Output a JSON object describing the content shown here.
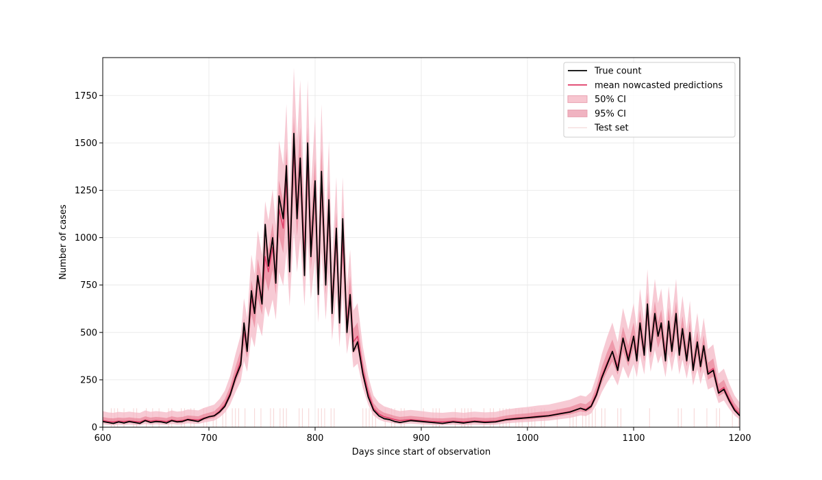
{
  "chart_data": {
    "type": "line",
    "title": "",
    "xlabel": "Days since start of observation",
    "ylabel": "Number of cases",
    "xlim": [
      600,
      1200
    ],
    "ylim": [
      0,
      1950
    ],
    "x_ticks": [
      600,
      700,
      800,
      900,
      1000,
      1100,
      1200
    ],
    "y_ticks": [
      0,
      250,
      500,
      750,
      1000,
      1250,
      1500,
      1750
    ],
    "grid": true,
    "legend_position": "top-right",
    "colors": {
      "true_count": "#000000",
      "mean": "#e0406a",
      "ci50": "#e8798f",
      "ci95": "#f4b8c6",
      "test_set": "#f2c2c2"
    },
    "legend": [
      {
        "label": "True count",
        "kind": "line",
        "color": "#000000"
      },
      {
        "label": "mean nowcasted predictions",
        "kind": "line",
        "color": "#e0406a"
      },
      {
        "label": "50% CI",
        "kind": "patch",
        "color": "#f7c6d0"
      },
      {
        "label": "95% CI",
        "kind": "patch",
        "color": "#f0b3c1"
      },
      {
        "label": "Test set",
        "kind": "line",
        "color": "#f2d0d0"
      }
    ],
    "series": [
      {
        "name": "True count",
        "x": [
          600,
          605,
          610,
          615,
          620,
          625,
          630,
          635,
          640,
          645,
          650,
          655,
          660,
          665,
          670,
          675,
          680,
          685,
          690,
          695,
          700,
          705,
          710,
          715,
          720,
          725,
          730,
          733,
          736,
          740,
          743,
          746,
          750,
          753,
          756,
          760,
          763,
          766,
          770,
          773,
          776,
          780,
          783,
          786,
          790,
          793,
          796,
          800,
          803,
          806,
          810,
          813,
          816,
          820,
          823,
          826,
          830,
          833,
          836,
          840,
          845,
          850,
          855,
          860,
          865,
          870,
          875,
          880,
          890,
          900,
          910,
          920,
          930,
          940,
          950,
          960,
          970,
          980,
          990,
          1000,
          1010,
          1020,
          1030,
          1040,
          1050,
          1055,
          1060,
          1065,
          1070,
          1075,
          1080,
          1085,
          1090,
          1095,
          1100,
          1103,
          1106,
          1110,
          1113,
          1116,
          1120,
          1123,
          1126,
          1130,
          1133,
          1136,
          1140,
          1143,
          1146,
          1150,
          1153,
          1156,
          1160,
          1163,
          1166,
          1170,
          1175,
          1180,
          1185,
          1190,
          1195,
          1200
        ],
        "y": [
          30,
          25,
          20,
          28,
          22,
          30,
          25,
          20,
          35,
          25,
          30,
          28,
          22,
          35,
          28,
          30,
          40,
          35,
          30,
          45,
          55,
          60,
          80,
          110,
          170,
          260,
          330,
          550,
          400,
          720,
          600,
          800,
          650,
          1070,
          850,
          1000,
          760,
          1220,
          1100,
          1380,
          820,
          1550,
          1100,
          1420,
          800,
          1500,
          900,
          1300,
          700,
          1350,
          750,
          1200,
          600,
          1050,
          550,
          1100,
          500,
          700,
          400,
          450,
          280,
          160,
          90,
          60,
          45,
          40,
          30,
          25,
          35,
          30,
          25,
          20,
          28,
          22,
          30,
          25,
          28,
          40,
          45,
          50,
          55,
          60,
          70,
          80,
          100,
          90,
          110,
          170,
          260,
          330,
          400,
          300,
          470,
          350,
          480,
          350,
          550,
          380,
          650,
          400,
          600,
          480,
          550,
          350,
          560,
          400,
          600,
          380,
          520,
          350,
          500,
          300,
          450,
          320,
          430,
          280,
          300,
          180,
          200,
          140,
          90,
          60
        ],
        "color": "#000000"
      },
      {
        "name": "mean nowcasted predictions",
        "x": [
          600,
          605,
          610,
          615,
          620,
          625,
          630,
          635,
          640,
          645,
          650,
          655,
          660,
          665,
          670,
          675,
          680,
          685,
          690,
          695,
          700,
          705,
          710,
          715,
          720,
          725,
          730,
          733,
          736,
          740,
          743,
          746,
          750,
          753,
          756,
          760,
          763,
          766,
          770,
          773,
          776,
          780,
          783,
          786,
          790,
          793,
          796,
          800,
          803,
          806,
          810,
          813,
          816,
          820,
          823,
          826,
          830,
          833,
          836,
          840,
          845,
          850,
          855,
          860,
          865,
          870,
          875,
          880,
          890,
          900,
          910,
          920,
          930,
          940,
          950,
          960,
          970,
          980,
          990,
          1000,
          1010,
          1020,
          1030,
          1040,
          1050,
          1055,
          1060,
          1065,
          1070,
          1075,
          1080,
          1085,
          1090,
          1095,
          1100,
          1103,
          1106,
          1110,
          1113,
          1116,
          1120,
          1123,
          1126,
          1130,
          1133,
          1136,
          1140,
          1143,
          1146,
          1150,
          1153,
          1156,
          1160,
          1163,
          1166,
          1170,
          1175,
          1180,
          1185,
          1190,
          1195,
          1200
        ],
        "y": [
          35,
          30,
          28,
          32,
          30,
          33,
          30,
          28,
          38,
          32,
          35,
          33,
          30,
          38,
          33,
          35,
          42,
          40,
          38,
          48,
          55,
          62,
          85,
          120,
          180,
          270,
          350,
          500,
          420,
          680,
          600,
          780,
          680,
          900,
          820,
          950,
          800,
          1150,
          1050,
          1300,
          900,
          1450,
          1150,
          1400,
          900,
          1400,
          950,
          1250,
          780,
          1300,
          800,
          1150,
          650,
          1000,
          600,
          1000,
          550,
          700,
          450,
          480,
          300,
          180,
          100,
          70,
          55,
          48,
          40,
          35,
          40,
          35,
          30,
          28,
          32,
          28,
          33,
          30,
          32,
          42,
          48,
          52,
          58,
          62,
          72,
          82,
          100,
          95,
          115,
          180,
          270,
          340,
          400,
          320,
          460,
          370,
          480,
          380,
          540,
          400,
          620,
          420,
          580,
          480,
          540,
          380,
          550,
          420,
          580,
          400,
          510,
          370,
          490,
          320,
          440,
          330,
          420,
          290,
          310,
          190,
          210,
          150,
          100,
          70
        ],
        "color": "#e0406a"
      }
    ]
  }
}
